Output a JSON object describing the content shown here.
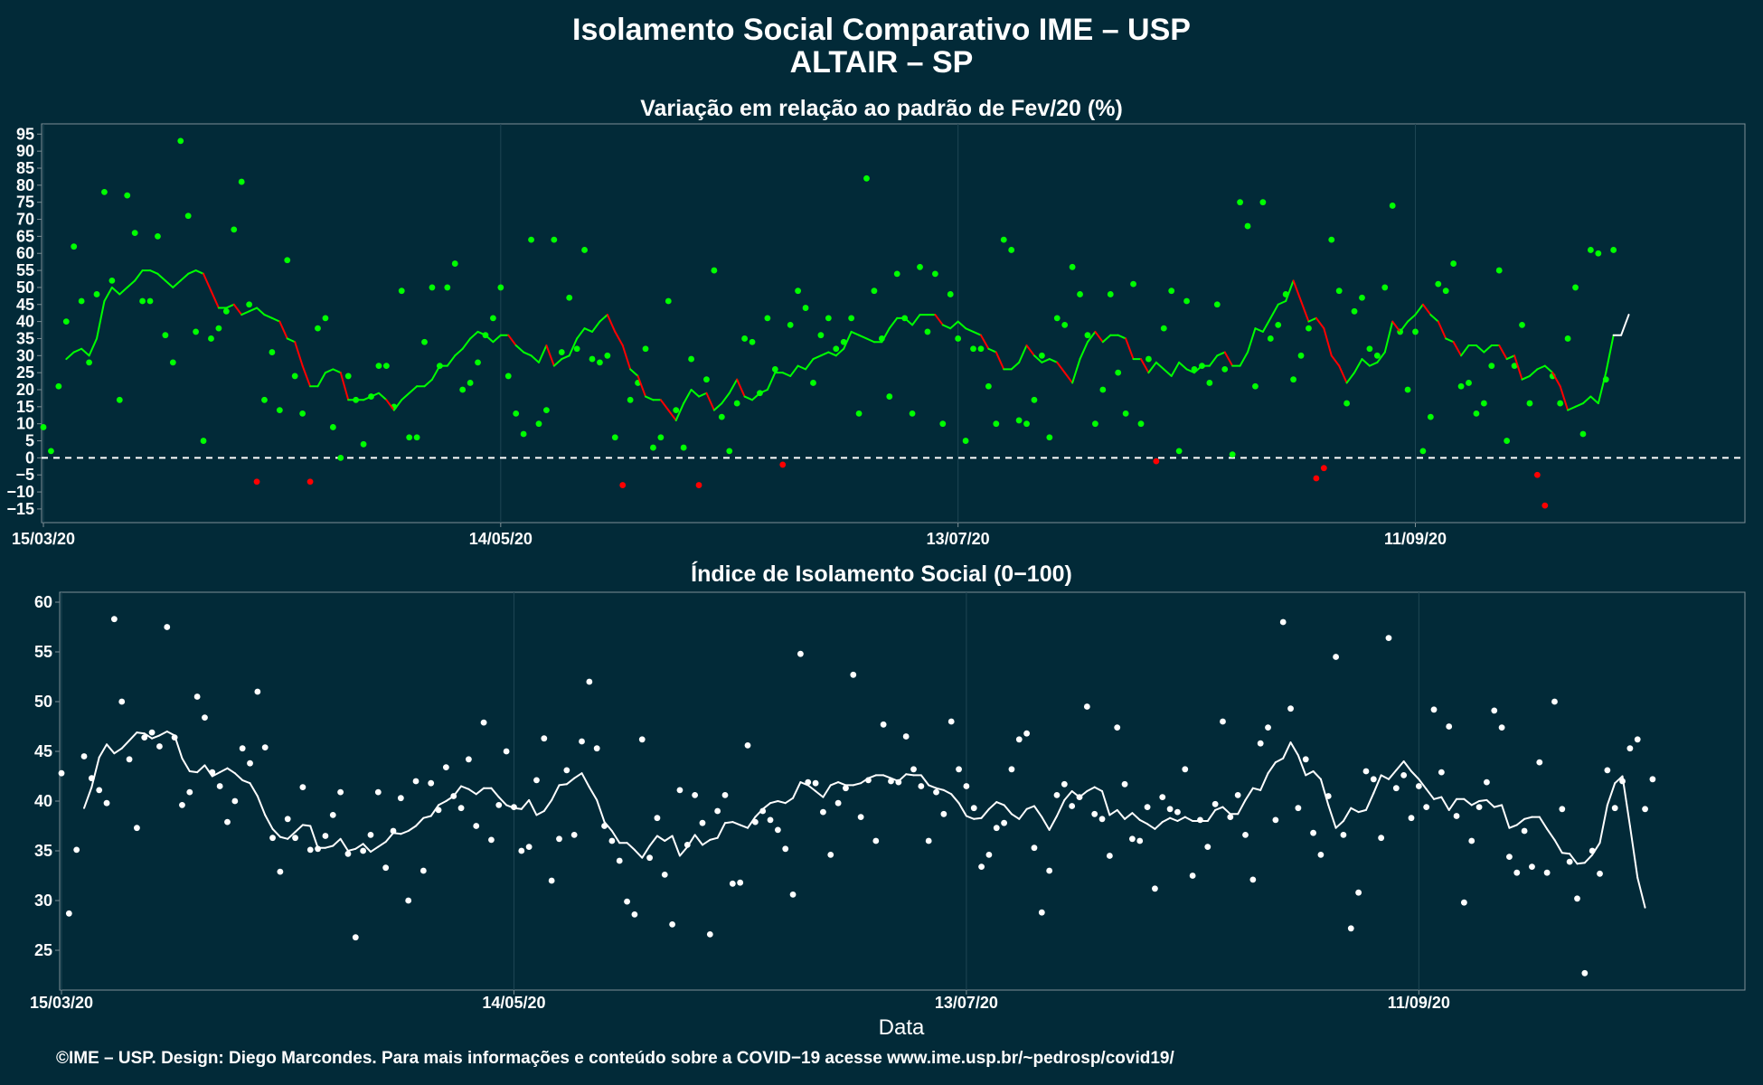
{
  "title_line1": "Isolamento Social Comparativo IME – USP",
  "title_line2": "ALTAIR – SP",
  "xlabel": "Data",
  "caption": "©IME – USP. Design: Diego Marcondes. Para mais informações e conteúdo sobre a COVID−19 acesse www.ime.usp.br/~pedrosp/covid19/",
  "colors": {
    "background": "#022a38",
    "positive": "#00ff00",
    "negative": "#ff0000",
    "index": "#ffffff",
    "grid": "#1f4654",
    "frame": "#7f8f96"
  },
  "chart_data": [
    {
      "type": "scatter",
      "title": "Variação em relação ao padrão de Fev/20 (%)",
      "x_ticks": [
        "15/03/20",
        "14/05/20",
        "13/07/20",
        "11/09/20"
      ],
      "x_range": [
        "15/03/20",
        "24/10/20"
      ],
      "ylim": [
        -19,
        98
      ],
      "y_ticks": [
        -15,
        -10,
        -5,
        0,
        5,
        10,
        15,
        20,
        25,
        30,
        35,
        40,
        45,
        50,
        55,
        60,
        65,
        70,
        75,
        80,
        85,
        90,
        95
      ],
      "reference_line": 0,
      "grid": true,
      "point_color_rule": "green for value >= 0, red for value < 0",
      "series": [
        {
          "kind": "points",
          "x_start": "15/03/20",
          "step_days": 1,
          "values": [
            9,
            2,
            21,
            40,
            62,
            46,
            28,
            48,
            78,
            52,
            17,
            77,
            66,
            46,
            46,
            65,
            36,
            28,
            93,
            71,
            37,
            5,
            35,
            38,
            43,
            67,
            81,
            45,
            -7,
            17,
            31,
            14,
            58,
            24,
            13,
            -7,
            38,
            41,
            9,
            0,
            24,
            17,
            4,
            18,
            27,
            27,
            15,
            49,
            6,
            6,
            34,
            50,
            27,
            50,
            57,
            20,
            22,
            28,
            36,
            41,
            50,
            24,
            13,
            7,
            64,
            10,
            14,
            64,
            31,
            47,
            32,
            61,
            29,
            28,
            30,
            6,
            -8,
            17,
            22,
            32,
            3,
            6,
            46,
            14,
            3,
            29,
            -8,
            23,
            55,
            12,
            2,
            16,
            35,
            34,
            19,
            41,
            26,
            -2,
            39,
            49,
            44,
            22,
            36,
            41,
            32,
            34,
            41,
            13,
            82,
            49,
            35,
            18,
            54,
            41,
            13,
            56,
            37,
            54,
            10,
            48,
            35,
            5,
            32,
            32,
            21,
            10,
            64,
            61,
            11,
            10,
            17,
            30,
            6,
            41,
            39,
            56,
            48,
            36,
            10,
            20,
            48,
            25,
            13,
            51,
            10,
            29,
            -1,
            38,
            49,
            2,
            46,
            26,
            27,
            22,
            45,
            26,
            1,
            75,
            68,
            21,
            75,
            35,
            39,
            48,
            23,
            30,
            38,
            -6,
            -3,
            64,
            49,
            16,
            43,
            47,
            32,
            30,
            50,
            74,
            37,
            20,
            37,
            2,
            12,
            51,
            49,
            57,
            21,
            22,
            13,
            16,
            27,
            55,
            5,
            27,
            39,
            16,
            -5,
            -14,
            24,
            16,
            35,
            50,
            7,
            61,
            60,
            23,
            61
          ]
        },
        {
          "kind": "moving_average_7d",
          "x_start": "18/03/20",
          "step_days": 1,
          "values": [
            29,
            31,
            32,
            30,
            35,
            46,
            50,
            48,
            50,
            52,
            55,
            55,
            54,
            52,
            50,
            52,
            54,
            55,
            54,
            49,
            44,
            44,
            45,
            42,
            43,
            44,
            42,
            41,
            40,
            35,
            34,
            27,
            21,
            21,
            25,
            26,
            25,
            17,
            17,
            17,
            18,
            19,
            17,
            14,
            17,
            19,
            21,
            21,
            23,
            27,
            27,
            30,
            32,
            35,
            37,
            36,
            34,
            36,
            36,
            33,
            31,
            30,
            28,
            33,
            27,
            29,
            30,
            35,
            38,
            37,
            40,
            42,
            37,
            33,
            26,
            24,
            18,
            17,
            17,
            14,
            11,
            16,
            20,
            18,
            19,
            14,
            16,
            19,
            23,
            18,
            17,
            19,
            20,
            25,
            25,
            24,
            27,
            26,
            29,
            30,
            31,
            30,
            32,
            37,
            36,
            35,
            34,
            34,
            38,
            41,
            41,
            39,
            42,
            42,
            42,
            39,
            38,
            40,
            38,
            37,
            36,
            32,
            31,
            26,
            26,
            28,
            33,
            30,
            28,
            29,
            28,
            25,
            22,
            29,
            34,
            37,
            34,
            36,
            36,
            35,
            29,
            29,
            25,
            28,
            26,
            24,
            28,
            26,
            25,
            27,
            27,
            30,
            31,
            27,
            27,
            31,
            38,
            37,
            41,
            45,
            46,
            52,
            46,
            40,
            41,
            38,
            30,
            27,
            22,
            25,
            29,
            27,
            28,
            31,
            40,
            37,
            40,
            42,
            45,
            42,
            40,
            35,
            34,
            30,
            33,
            33,
            31,
            33,
            33,
            29,
            30,
            23,
            24,
            26,
            27,
            25,
            21,
            14,
            15,
            16,
            18,
            16,
            25,
            36,
            36,
            42
          ]
        }
      ]
    },
    {
      "type": "scatter",
      "title": "Índice de Isolamento Social (0−100)",
      "x_ticks": [
        "15/03/20",
        "14/05/20",
        "13/07/20",
        "11/09/20"
      ],
      "x_range": [
        "15/03/20",
        "24/10/20"
      ],
      "ylim": [
        21,
        61
      ],
      "y_ticks": [
        25,
        30,
        35,
        40,
        45,
        50,
        55,
        60
      ],
      "grid": true,
      "series": [
        {
          "kind": "points",
          "x_start": "15/03/20",
          "step_days": 1,
          "values": [
            42.8,
            28.7,
            35.1,
            44.5,
            42.3,
            41.1,
            39.8,
            58.3,
            50.0,
            44.2,
            37.3,
            46.4,
            46.9,
            45.5,
            57.5,
            46.4,
            39.6,
            40.9,
            50.5,
            48.4,
            42.9,
            41.5,
            37.9,
            40.0,
            45.3,
            43.8,
            51.0,
            45.4,
            36.3,
            32.9,
            38.2,
            36.3,
            41.4,
            35.1,
            35.2,
            36.5,
            38.6,
            40.9,
            34.7,
            26.3,
            35.0,
            36.6,
            40.9,
            33.3,
            37.0,
            40.3,
            30.0,
            42.0,
            33.0,
            41.8,
            39.1,
            43.4,
            40.5,
            39.3,
            44.2,
            37.5,
            47.9,
            36.1,
            39.6,
            45.0,
            39.4,
            35.0,
            35.4,
            42.1,
            46.3,
            32.0,
            36.2,
            43.1,
            36.6,
            46.0,
            52.0,
            45.3,
            37.5,
            36.0,
            34.0,
            29.9,
            28.6,
            46.2,
            34.3,
            38.3,
            32.6,
            27.6,
            41.1,
            35.6,
            40.6,
            37.8,
            26.6,
            39.0,
            40.6,
            31.7,
            31.8,
            45.6,
            37.9,
            39.0,
            38.1,
            37.1,
            35.2,
            30.6,
            54.8,
            41.9,
            41.8,
            38.9,
            34.6,
            39.8,
            41.3,
            52.7,
            38.4,
            42.1,
            36.0,
            47.7,
            42.0,
            41.9,
            46.5,
            43.2,
            41.5,
            36.0,
            40.9,
            38.7,
            48.0,
            43.2,
            41.5,
            39.3,
            33.4,
            34.6,
            37.3,
            37.8,
            43.2,
            46.2,
            46.8,
            35.3,
            28.8,
            33.0,
            40.6,
            41.7,
            39.5,
            40.4,
            49.5,
            38.7,
            38.2,
            34.5,
            47.4,
            41.7,
            36.2,
            36.0,
            39.4,
            31.2,
            40.4,
            39.2,
            38.9,
            43.2,
            32.5,
            38.1,
            35.4,
            39.7,
            48.0,
            38.4,
            40.6,
            36.6,
            32.1,
            45.8,
            47.4,
            38.1,
            58.0,
            49.3,
            39.3,
            44.2,
            36.8,
            34.6,
            40.5,
            54.5,
            36.6,
            27.2,
            30.8,
            43.0,
            42.2,
            36.3,
            56.4,
            41.3,
            42.6,
            38.3,
            41.5,
            39.4,
            49.2,
            42.9,
            47.5,
            38.5,
            29.8,
            36.0,
            39.4,
            41.9,
            49.1,
            47.4,
            34.4,
            32.8,
            37.0,
            33.4,
            43.9,
            32.8,
            50.0,
            39.2,
            33.9,
            30.2,
            22.7,
            35.0,
            32.7,
            43.1,
            39.3,
            42.0,
            45.3,
            46.2,
            39.2,
            42.2
          ]
        },
        {
          "kind": "moving_average_7d",
          "x_start": "18/03/20",
          "step_days": 1,
          "values": [
            39.3,
            41.4,
            44.4,
            45.7,
            44.8,
            45.3,
            46.1,
            46.9,
            46.8,
            46.3,
            46.6,
            47.0,
            46.6,
            44.3,
            43.0,
            42.9,
            43.6,
            42.5,
            42.9,
            43.3,
            42.8,
            42.1,
            41.8,
            40.5,
            38.6,
            37.2,
            36.4,
            36.2,
            36.9,
            37.6,
            37.5,
            35.3,
            35.3,
            35.5,
            36.2,
            35.0,
            35.2,
            35.7,
            34.9,
            35.4,
            35.9,
            36.8,
            36.7,
            37.0,
            37.5,
            38.3,
            38.5,
            39.6,
            40.0,
            40.5,
            41.5,
            41.2,
            40.7,
            41.3,
            41.3,
            40.4,
            39.6,
            39.3,
            39.2,
            40.1,
            38.6,
            39.0,
            40.1,
            41.6,
            41.7,
            42.3,
            42.8,
            41.4,
            40.1,
            37.9,
            37.0,
            35.8,
            35.8,
            35.1,
            34.3,
            35.5,
            36.5,
            36.0,
            36.5,
            34.5,
            35.4,
            36.6,
            35.6,
            36.1,
            36.3,
            37.8,
            37.9,
            37.6,
            37.3,
            38.4,
            39.2,
            39.8,
            40.0,
            39.8,
            40.3,
            41.9,
            41.6,
            41.0,
            40.4,
            41.6,
            41.9,
            41.6,
            41.6,
            41.8,
            42.3,
            42.6,
            42.6,
            42.3,
            42.0,
            42.7,
            42.6,
            42.6,
            41.6,
            41.3,
            41.1,
            40.7,
            39.8,
            38.5,
            38.2,
            38.3,
            39.2,
            39.9,
            39.6,
            38.7,
            38.2,
            39.2,
            39.5,
            38.4,
            37.1,
            38.5,
            40.1,
            41.0,
            40.4,
            41.0,
            41.4,
            41.0,
            38.6,
            39.1,
            38.2,
            38.8,
            38.1,
            37.7,
            37.2,
            37.9,
            38.3,
            38.0,
            38.4,
            38.0,
            38.0,
            38.0,
            39.1,
            39.4,
            38.7,
            38.7,
            40.1,
            41.3,
            41.1,
            42.8,
            43.9,
            44.3,
            45.9,
            44.6,
            42.6,
            43.0,
            42.2,
            39.6,
            37.3,
            38.0,
            39.3,
            38.9,
            39.1,
            40.8,
            42.6,
            42.2,
            43.1,
            44.0,
            43.0,
            42.2,
            41.2,
            40.2,
            40.4,
            39.1,
            40.2,
            40.2,
            39.6,
            40.0,
            40.1,
            39.4,
            39.6,
            37.3,
            37.6,
            38.2,
            38.4,
            38.4,
            37.2,
            36.1,
            34.8,
            34.7,
            33.7,
            33.8,
            34.6,
            35.8,
            39.6,
            41.8,
            42.5,
            37.5,
            32.3,
            29.3
          ]
        }
      ]
    }
  ]
}
